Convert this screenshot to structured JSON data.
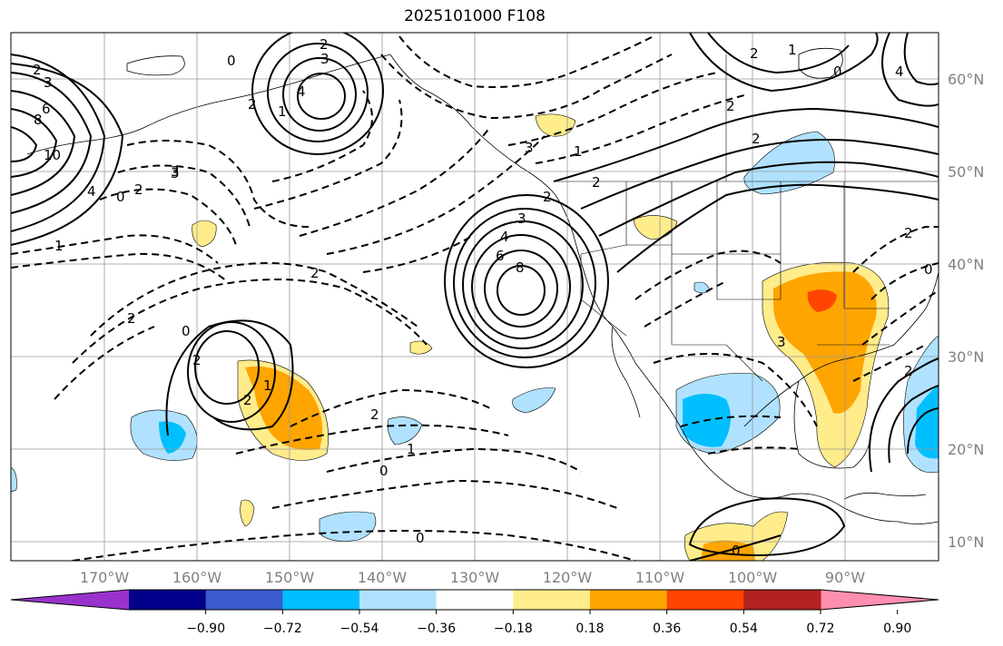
{
  "title": "2025101000 F108",
  "lat_labels": [
    "60°N",
    "50°N",
    "40°N",
    "30°N",
    "20°N",
    "10°N"
  ],
  "lon_labels": [
    "170°W",
    "160°W",
    "150°W",
    "140°W",
    "130°W",
    "120°W",
    "110°W",
    "100°W",
    "90°W"
  ],
  "colorbar": {
    "colors": [
      "#9932cc",
      "#00008b",
      "#3a5bcc",
      "#00bfff",
      "#b0e2ff",
      "#ffffff",
      "#ffec8b",
      "#ffa500",
      "#ff4500",
      "#b22222",
      "#ff8fb0"
    ],
    "tick_labels": [
      "−0.90",
      "−0.72",
      "−0.54",
      "−0.36",
      "−0.18",
      "0.18",
      "0.36",
      "0.54",
      "0.72",
      "0.90"
    ]
  },
  "contour_labels": [
    "2",
    "3",
    "0",
    "2",
    "3",
    "4",
    "2",
    "6",
    "8",
    "10",
    "4",
    "0",
    "1",
    "2",
    "3",
    "1",
    "2",
    "0",
    "2",
    "2",
    "1",
    "2",
    "2",
    "1",
    "0",
    "0",
    "3",
    "3",
    "2",
    "2",
    "3",
    "4",
    "6",
    "8",
    "1",
    "2",
    "0",
    "4",
    "1",
    "2",
    "2",
    "0",
    "3",
    "2",
    "2",
    "0"
  ]
}
